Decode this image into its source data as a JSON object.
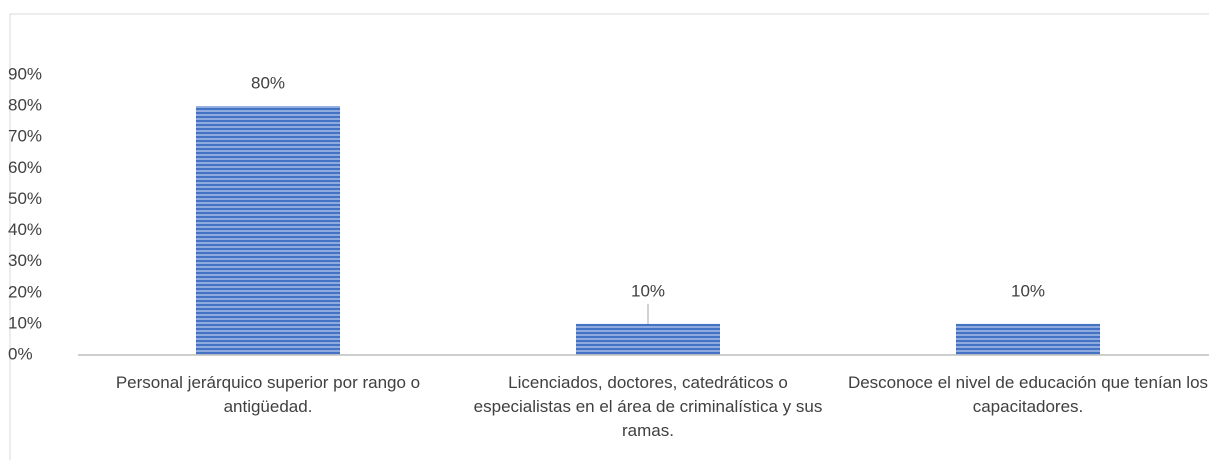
{
  "chart_data": {
    "type": "bar",
    "categories": [
      "Personal jerárquico superior por rango o antigüedad.",
      "Licenciados, doctores, catedráticos o especialistas en el área de criminalística y sus ramas.",
      "Desconoce el nivel de educación que tenían los capacitadores."
    ],
    "values": [
      80,
      10,
      10
    ],
    "value_labels": [
      "80%",
      "10%",
      "10%"
    ],
    "color": "#4472c4",
    "ylim": [
      0,
      90
    ],
    "yticks": [
      {
        "value": 0,
        "label": "0%"
      },
      {
        "value": 10,
        "label": "10%"
      },
      {
        "value": 20,
        "label": "20%"
      },
      {
        "value": 30,
        "label": "30%"
      },
      {
        "value": 40,
        "label": "40%"
      },
      {
        "value": 50,
        "label": "50%"
      },
      {
        "value": 60,
        "label": "60%"
      },
      {
        "value": 70,
        "label": "70%"
      },
      {
        "value": 80,
        "label": "80%"
      },
      {
        "value": 90,
        "label": "90%"
      }
    ],
    "grid": false
  }
}
